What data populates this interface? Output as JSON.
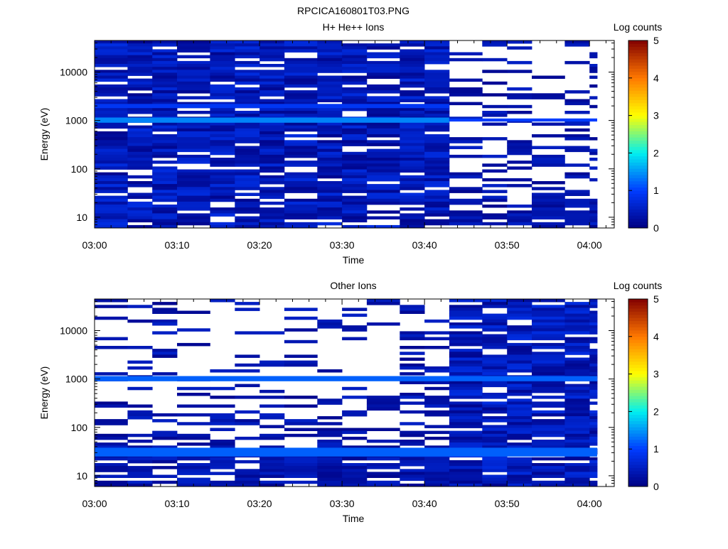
{
  "figure": {
    "title": "RPCICA160801T03.PNG"
  },
  "chart_data": [
    {
      "type": "heatmap",
      "title": "H+ He++ Ions",
      "xlabel": "Time",
      "ylabel": "Energy (eV)",
      "y_scale": "log",
      "x_range": [
        "03:00",
        "04:03"
      ],
      "y_range": [
        6,
        45000
      ],
      "x_ticks": [
        "03:00",
        "03:10",
        "03:20",
        "03:30",
        "03:40",
        "03:50",
        "04:00"
      ],
      "y_ticks": [
        "10",
        "100",
        "1000",
        "10000"
      ],
      "colorbar": {
        "label": "Log counts",
        "range": [
          0,
          5
        ],
        "ticks": [
          "0",
          "1",
          "2",
          "3",
          "4",
          "5"
        ]
      },
      "time_bins": [
        "03:00",
        "03:04",
        "03:07",
        "03:10",
        "03:14",
        "03:17",
        "03:20",
        "03:23",
        "03:27",
        "03:30",
        "03:33",
        "03:37",
        "03:40",
        "03:43",
        "03:47",
        "03:50",
        "03:53",
        "03:57",
        "04:00"
      ],
      "bands": [
        {
          "energy_low": 900,
          "energy_high": 1150,
          "from": "03:00",
          "to": "03:43",
          "log_counts": 1.4
        },
        {
          "energy_low": 950,
          "energy_high": 1100,
          "from": "03:43",
          "to": "04:03",
          "log_counts": 1.0
        },
        {
          "energy_low": 1800,
          "energy_high": 2200,
          "from": "03:00",
          "to": "03:43",
          "log_counts": 0.9
        }
      ],
      "data_extent": {
        "from": "03:00",
        "to": "04:03"
      },
      "dense_until": "03:43",
      "sparse_after": "03:43"
    },
    {
      "type": "heatmap",
      "title": "Other Ions",
      "xlabel": "Time",
      "ylabel": "Energy (eV)",
      "y_scale": "log",
      "x_range": [
        "03:00",
        "04:03"
      ],
      "y_range": [
        6,
        45000
      ],
      "x_ticks": [
        "03:00",
        "03:10",
        "03:20",
        "03:30",
        "03:40",
        "03:50",
        "04:00"
      ],
      "y_ticks": [
        "10",
        "100",
        "1000",
        "10000"
      ],
      "colorbar": {
        "label": "Log counts",
        "range": [
          0,
          5
        ],
        "ticks": [
          "0",
          "1",
          "2",
          "3",
          "4",
          "5"
        ]
      },
      "time_bins": [
        "03:00",
        "03:04",
        "03:07",
        "03:10",
        "03:14",
        "03:17",
        "03:20",
        "03:23",
        "03:27",
        "03:30",
        "03:33",
        "03:37",
        "03:40",
        "03:43",
        "03:47",
        "03:50",
        "03:53",
        "03:57",
        "04:00"
      ],
      "bands": [
        {
          "energy_low": 900,
          "energy_high": 1150,
          "from": "03:00",
          "to": "04:03",
          "log_counts": 1.2
        },
        {
          "energy_low": 25,
          "energy_high": 38,
          "from": "03:00",
          "to": "04:03",
          "log_counts": 1.2
        }
      ],
      "data_extent": {
        "from": "03:00",
        "to": "04:03"
      },
      "dense_after": "03:43",
      "sparse_until": "03:43"
    }
  ]
}
